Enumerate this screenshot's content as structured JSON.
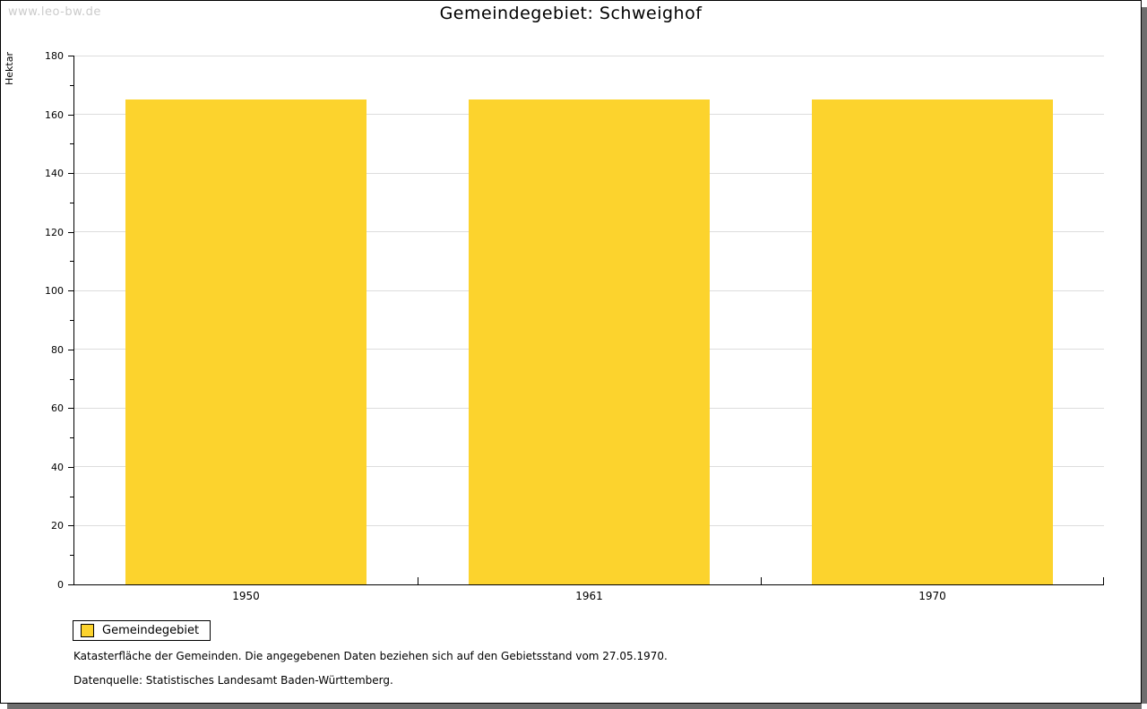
{
  "watermark": "www.leo-bw.de",
  "title": "Gemeindegebiet: Schweighof",
  "chart_data": {
    "type": "bar",
    "title": "Gemeindegebiet: Schweighof",
    "categories": [
      "1950",
      "1961",
      "1970"
    ],
    "series": [
      {
        "name": "Gemeindegebiet",
        "values": [
          165,
          165,
          165
        ],
        "color": "#FCD32D"
      }
    ],
    "xlabel": "",
    "ylabel": "Hektar",
    "ylim": [
      0,
      180
    ],
    "yticks": [
      0,
      20,
      40,
      60,
      80,
      100,
      120,
      140,
      160,
      180
    ],
    "ytick_minor_step": 10,
    "grid": true,
    "legend_position": "bottom-left"
  },
  "legend": {
    "label": "Gemeindegebiet",
    "swatch_color": "#FCD32D"
  },
  "footnotes": [
    "Katasterfläche der Gemeinden. Die angegebenen Daten beziehen sich auf den Gebietsstand vom 27.05.1970.",
    "Datenquelle: Statistisches Landesamt Baden-Württemberg."
  ],
  "colors": {
    "bar": "#FCD32D",
    "grid": "#DDDDDD",
    "axis": "#000000",
    "watermark": "#CBCBCB",
    "frame_shadow": "#6E6E6E"
  }
}
